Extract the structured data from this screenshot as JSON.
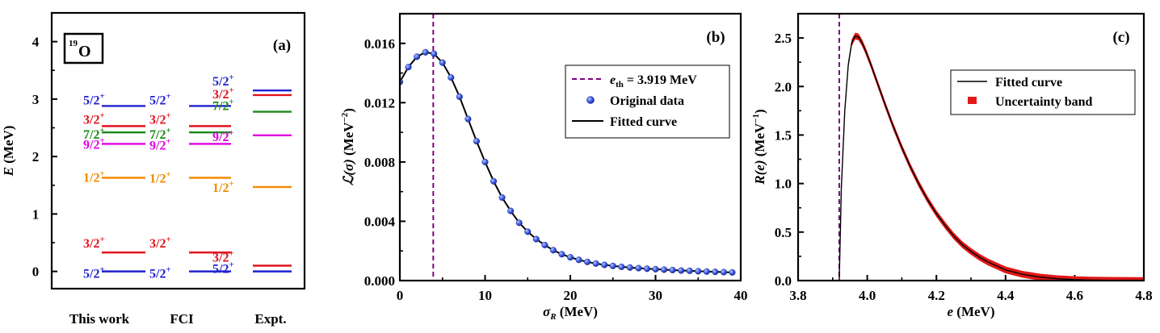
{
  "chart_data": [
    {
      "type": "level-scheme",
      "panel_label": "(a)",
      "nucleus_label": "19O",
      "nucleus_mass": "19",
      "nucleus_symbol": "O",
      "ylabel": "E (MeV)",
      "ylabel_var": "E",
      "ylabel_unit": " (MeV)",
      "ylim": [
        -0.3,
        4.5
      ],
      "yticks": [
        0,
        1,
        2,
        3,
        4
      ],
      "columns": [
        "This work",
        "FCI",
        "Expt."
      ],
      "levels": [
        [
          {
            "spin": "5/2",
            "parity": "+",
            "energy": 0.0,
            "color": "#1f1fd0"
          },
          {
            "spin": "3/2",
            "parity": "+",
            "energy": 0.33,
            "color": "#e0141e"
          },
          {
            "spin": "1/2",
            "parity": "+",
            "energy": 1.63,
            "color": "#f08a00"
          },
          {
            "spin": "9/2",
            "parity": "+",
            "energy": 2.22,
            "color": "#e000e0"
          },
          {
            "spin": "7/2",
            "parity": "+",
            "energy": 2.42,
            "color": "#1a8a1a"
          },
          {
            "spin": "3/2",
            "parity": "+",
            "energy": 2.53,
            "color": "#e0141e"
          },
          {
            "spin": "5/2",
            "parity": "+",
            "energy": 2.88,
            "color": "#1f1fd0"
          }
        ],
        [
          {
            "spin": "5/2",
            "parity": "+",
            "energy": 0.0,
            "color": "#1f1fd0"
          },
          {
            "spin": "3/2",
            "parity": "+",
            "energy": 0.33,
            "color": "#e0141e"
          },
          {
            "spin": "1/2",
            "parity": "+",
            "energy": 1.63,
            "color": "#f08a00"
          },
          {
            "spin": "9/2",
            "parity": "+",
            "energy": 2.22,
            "color": "#e000e0"
          },
          {
            "spin": "7/2",
            "parity": "+",
            "energy": 2.42,
            "color": "#1a8a1a"
          },
          {
            "spin": "3/2",
            "parity": "+",
            "energy": 2.53,
            "color": "#e0141e"
          },
          {
            "spin": "5/2",
            "parity": "+",
            "energy": 2.88,
            "color": "#1f1fd0"
          }
        ],
        [
          {
            "spin": "5/2",
            "parity": "+",
            "energy": 0.0,
            "color": "#1f1fd0"
          },
          {
            "spin": "3/2",
            "parity": "+",
            "energy": 0.1,
            "color": "#e0141e"
          },
          {
            "spin": "1/2",
            "parity": "+",
            "energy": 1.47,
            "color": "#f08a00"
          },
          {
            "spin": "9/2",
            "parity": "+",
            "energy": 2.37,
            "color": "#e000e0"
          },
          {
            "spin": "7/2",
            "parity": "+",
            "energy": 2.78,
            "color": "#1a8a1a"
          },
          {
            "spin": "3/2",
            "parity": "+",
            "energy": 3.07,
            "color": "#e0141e"
          },
          {
            "spin": "5/2",
            "parity": "+",
            "energy": 3.15,
            "color": "#1f1fd0"
          }
        ]
      ]
    },
    {
      "type": "line",
      "panel_label": "(b)",
      "xlabel": "σR (MeV)",
      "xlabel_var": "σ",
      "xlabel_sub": "R",
      "xlabel_unit": " (MeV)",
      "ylabel": "ℒ(σ) (MeV⁻²)",
      "ylabel_var": "ℒ(σ)",
      "ylabel_unit": " (MeV",
      "ylabel_sup": "−2",
      "xlim": [
        0,
        40
      ],
      "ylim": [
        0,
        0.018
      ],
      "xticks": [
        0,
        10,
        20,
        30,
        40
      ],
      "yticks": [
        0.0,
        0.004,
        0.008,
        0.012,
        0.016
      ],
      "ytick_labels": [
        "0.000",
        "0.004",
        "0.008",
        "0.012",
        "0.016"
      ],
      "threshold_x": 3.919,
      "legend": [
        {
          "text": "eth = 3.919 MeV",
          "var": "e",
          "sub": "th",
          "rest": " = 3.919 MeV"
        },
        {
          "text": "Original data"
        },
        {
          "text": "Fitted curve"
        }
      ],
      "series": [
        {
          "name": "Original data",
          "x": [
            0,
            1,
            2,
            3,
            4,
            5,
            6,
            7,
            8,
            9,
            10,
            11,
            12,
            13,
            14,
            15,
            16,
            17,
            18,
            19,
            20,
            21,
            22,
            23,
            24,
            25,
            26,
            27,
            28,
            29,
            30,
            31,
            32,
            33,
            34,
            35,
            36,
            37,
            38,
            39
          ],
          "y": [
            0.0134,
            0.0144,
            0.0151,
            0.0154,
            0.0153,
            0.0147,
            0.0137,
            0.0124,
            0.0109,
            0.0094,
            0.008,
            0.0067,
            0.0056,
            0.0047,
            0.0039,
            0.0033,
            0.0028,
            0.0024,
            0.00205,
            0.00178,
            0.00157,
            0.0014,
            0.00126,
            0.00115,
            0.00106,
            0.00099,
            0.00093,
            0.00088,
            0.00084,
            0.0008,
            0.00077,
            0.00074,
            0.00071,
            0.00068,
            0.00066,
            0.00063,
            0.00061,
            0.00059,
            0.00057,
            0.00055
          ]
        },
        {
          "name": "Fitted curve",
          "x": [
            0,
            1,
            2,
            3,
            4,
            5,
            6,
            7,
            8,
            9,
            10,
            11,
            12,
            13,
            14,
            15,
            16,
            17,
            18,
            19,
            20,
            21,
            22,
            23,
            24,
            25,
            26,
            27,
            28,
            29,
            30,
            31,
            32,
            33,
            34,
            35,
            36,
            37,
            38,
            39
          ],
          "y": [
            0.0134,
            0.0144,
            0.0151,
            0.0154,
            0.0153,
            0.0147,
            0.0137,
            0.0124,
            0.0109,
            0.0094,
            0.008,
            0.0067,
            0.0056,
            0.0047,
            0.0039,
            0.0033,
            0.0028,
            0.0024,
            0.00205,
            0.00178,
            0.00157,
            0.0014,
            0.00126,
            0.00115,
            0.00106,
            0.00099,
            0.00093,
            0.00088,
            0.00084,
            0.0008,
            0.00077,
            0.00074,
            0.00071,
            0.00068,
            0.00066,
            0.00063,
            0.00061,
            0.00059,
            0.00057,
            0.00055
          ]
        }
      ]
    },
    {
      "type": "line",
      "panel_label": "(c)",
      "xlabel": "e (MeV)",
      "xlabel_var": "e",
      "xlabel_unit": " (MeV)",
      "ylabel": "R(e) (MeV⁻¹)",
      "ylabel_var": "R(e)",
      "ylabel_unit": " (MeV",
      "ylabel_sup": "−1",
      "xlim": [
        3.8,
        4.8
      ],
      "ylim": [
        0,
        2.75
      ],
      "xticks": [
        3.8,
        3.9,
        4.0,
        4.1,
        4.2,
        4.3,
        4.4,
        4.5,
        4.6,
        4.7,
        4.8
      ],
      "xtick_labels": [
        "3.8",
        "4.0",
        "4.2",
        "4.4",
        "4.6",
        "4.8"
      ],
      "yticks": [
        0.0,
        0.5,
        1.0,
        1.5,
        2.0,
        2.5
      ],
      "ytick_labels": [
        "0.0",
        "0.5",
        "1.0",
        "1.5",
        "2.0",
        "2.5"
      ],
      "threshold_x": 3.919,
      "legend": [
        {
          "text": "Fitted curve"
        },
        {
          "text": "Uncertainty band"
        }
      ],
      "series": [
        {
          "name": "Fitted curve",
          "x": [
            3.919,
            3.925,
            3.935,
            3.945,
            3.955,
            3.965,
            3.975,
            3.985,
            3.995,
            4.01,
            4.03,
            4.05,
            4.075,
            4.1,
            4.125,
            4.15,
            4.175,
            4.2,
            4.225,
            4.25,
            4.275,
            4.3,
            4.325,
            4.35,
            4.4,
            4.45,
            4.5,
            4.55,
            4.6,
            4.65,
            4.7,
            4.75,
            4.8
          ],
          "y": [
            0.0,
            0.95,
            1.75,
            2.22,
            2.45,
            2.52,
            2.51,
            2.45,
            2.37,
            2.23,
            2.03,
            1.83,
            1.59,
            1.37,
            1.17,
            0.99,
            0.83,
            0.69,
            0.57,
            0.46,
            0.37,
            0.3,
            0.24,
            0.19,
            0.11,
            0.064,
            0.036,
            0.019,
            0.01,
            0.005,
            0.002,
            0.001,
            0.0005
          ]
        },
        {
          "name": "Uncertainty band",
          "x": [
            3.919,
            3.925,
            3.935,
            3.945,
            3.955,
            3.965,
            3.975,
            3.985,
            3.995,
            4.01,
            4.03,
            4.05,
            4.075,
            4.1,
            4.125,
            4.15,
            4.175,
            4.2,
            4.225,
            4.25,
            4.275,
            4.3,
            4.325,
            4.35,
            4.4,
            4.45,
            4.5,
            4.55,
            4.6,
            4.65,
            4.7,
            4.75,
            4.8
          ],
          "y": [
            0.0,
            0.95,
            1.75,
            2.22,
            2.45,
            2.52,
            2.51,
            2.45,
            2.37,
            2.23,
            2.03,
            1.83,
            1.59,
            1.37,
            1.17,
            0.99,
            0.83,
            0.69,
            0.57,
            0.46,
            0.37,
            0.3,
            0.24,
            0.19,
            0.11,
            0.064,
            0.036,
            0.019,
            0.01,
            0.005,
            0.002,
            0.001,
            0.0005
          ],
          "uncertainty": 0.035
        }
      ]
    }
  ]
}
